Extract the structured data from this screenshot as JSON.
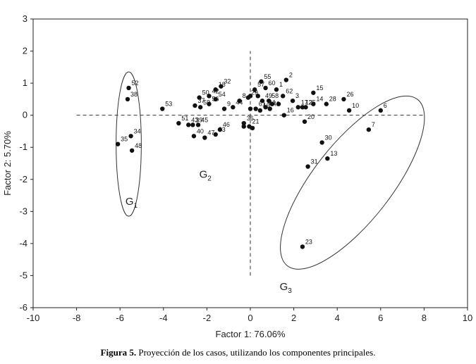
{
  "chart_data": {
    "type": "scatter",
    "xlabel": "Factor 1: 76.06%",
    "ylabel": "Factor 2: 5.70%",
    "xlim": [
      -10,
      10
    ],
    "ylim": [
      -6,
      3
    ],
    "xticks": [
      -10,
      -8,
      -6,
      -4,
      -2,
      0,
      2,
      4,
      6,
      8,
      10
    ],
    "yticks": [
      3,
      2,
      1,
      0,
      -1,
      -2,
      -3,
      -4,
      -5,
      -6
    ],
    "grid": false,
    "caption_prefix": "Figura 5.",
    "caption_text": " Proyección de los casos, utilizando los componentes principales.",
    "groups": [
      {
        "label": "G",
        "sub": "1",
        "center": [
          -5.6,
          -0.9
        ],
        "semi_axes": [
          1.45,
          2.25
        ],
        "angle_deg": 0
      },
      {
        "label": "G",
        "sub": "2",
        "text_anchor": [
          -2.3,
          -1.8
        ]
      },
      {
        "label": "G",
        "sub": "3",
        "center": [
          4.7,
          -2.1
        ],
        "semi_axes": [
          3.4,
          1.85
        ],
        "angle_deg": -52
      }
    ],
    "reference_lines": [
      {
        "axis": "y",
        "value": 0,
        "from": -8,
        "to": 8,
        "style": "dashed"
      },
      {
        "axis": "x",
        "value": 0,
        "from": -5,
        "to": 2,
        "style": "dashed"
      }
    ],
    "points": [
      {
        "label": "52",
        "x": -5.6,
        "y": 0.85
      },
      {
        "label": "38",
        "x": -5.65,
        "y": 0.5
      },
      {
        "label": "34",
        "x": -5.5,
        "y": -0.65
      },
      {
        "label": "35",
        "x": -6.1,
        "y": -0.9
      },
      {
        "label": "48",
        "x": -5.45,
        "y": -1.1
      },
      {
        "label": "53",
        "x": -4.05,
        "y": 0.2
      },
      {
        "label": "51",
        "x": -3.3,
        "y": -0.25
      },
      {
        "label": "43",
        "x": -2.85,
        "y": -0.3
      },
      {
        "label": "39",
        "x": -2.65,
        "y": -0.3
      },
      {
        "label": "45",
        "x": -2.4,
        "y": -0.3
      },
      {
        "label": "40",
        "x": -2.6,
        "y": -0.65
      },
      {
        "label": "47",
        "x": -2.1,
        "y": -0.7
      },
      {
        "label": "46",
        "x": -1.4,
        "y": -0.45
      },
      {
        "label": "33",
        "x": -1.6,
        "y": -0.6
      },
      {
        "label": "50",
        "x": -2.35,
        "y": 0.55
      },
      {
        "label": "37",
        "x": -2.55,
        "y": 0.3
      },
      {
        "label": "42",
        "x": -1.9,
        "y": 0.6
      },
      {
        "label": "54",
        "x": -1.6,
        "y": 0.5
      },
      {
        "label": "59",
        "x": -2.3,
        "y": 0.25
      },
      {
        "label": "56",
        "x": -1.9,
        "y": 0.35
      },
      {
        "label": "18",
        "x": -1.6,
        "y": 0.8
      },
      {
        "label": "32",
        "x": -1.35,
        "y": 0.9
      },
      {
        "label": "9",
        "x": -1.2,
        "y": 0.2
      },
      {
        "label": "44",
        "x": -0.8,
        "y": 0.25
      },
      {
        "label": "8",
        "x": -0.5,
        "y": 0.45
      },
      {
        "label": "29",
        "x": -0.1,
        "y": 0.55
      },
      {
        "label": "4",
        "x": 0.0,
        "y": 0.6
      },
      {
        "label": "57",
        "x": 0.2,
        "y": 0.8
      },
      {
        "label": "55",
        "x": 0.5,
        "y": 1.05
      },
      {
        "label": "60",
        "x": 0.7,
        "y": 0.85
      },
      {
        "label": "2",
        "x": 1.65,
        "y": 1.1
      },
      {
        "label": "1",
        "x": 1.2,
        "y": 0.8
      },
      {
        "label": "62",
        "x": 1.5,
        "y": 0.6
      },
      {
        "label": "3",
        "x": 1.95,
        "y": 0.45
      },
      {
        "label": "15",
        "x": 2.9,
        "y": 0.7
      },
      {
        "label": "61",
        "x": 0.25,
        "y": 0.2
      },
      {
        "label": "49",
        "x": 0.55,
        "y": 0.45
      },
      {
        "label": "58",
        "x": 0.85,
        "y": 0.45
      },
      {
        "label": "24",
        "x": 0.7,
        "y": 0.25
      },
      {
        "label": "41",
        "x": 0.9,
        "y": 0.2
      },
      {
        "label": "19",
        "x": 0.45,
        "y": 0.15
      },
      {
        "label": "16",
        "x": 1.55,
        "y": 0.0
      },
      {
        "label": "17",
        "x": 2.2,
        "y": 0.25
      },
      {
        "label": "12",
        "x": 2.4,
        "y": 0.25
      },
      {
        "label": "25",
        "x": 2.55,
        "y": 0.25
      },
      {
        "label": "14",
        "x": 2.9,
        "y": 0.35
      },
      {
        "label": "28",
        "x": 3.5,
        "y": 0.35
      },
      {
        "label": "26",
        "x": 4.3,
        "y": 0.5
      },
      {
        "label": "10",
        "x": 4.55,
        "y": 0.15
      },
      {
        "label": "6",
        "x": 6.0,
        "y": 0.15
      },
      {
        "label": "7",
        "x": 5.45,
        "y": -0.45
      },
      {
        "label": "20",
        "x": 2.5,
        "y": -0.2
      },
      {
        "label": "30",
        "x": 3.3,
        "y": -0.85
      },
      {
        "label": "13",
        "x": 3.55,
        "y": -1.35
      },
      {
        "label": "31",
        "x": 2.65,
        "y": -1.6
      },
      {
        "label": "23",
        "x": 2.4,
        "y": -4.1
      },
      {
        "label": "36",
        "x": -0.3,
        "y": -0.25
      },
      {
        "label": "21",
        "x": -0.05,
        "y": -0.35
      },
      {
        "label": "",
        "x": -0.3,
        "y": -0.35
      },
      {
        "label": "",
        "x": 0.1,
        "y": -0.4
      },
      {
        "label": "",
        "x": 1.0,
        "y": 0.35
      },
      {
        "label": "",
        "x": 0.35,
        "y": 0.6
      },
      {
        "label": "",
        "x": 1.3,
        "y": 0.35
      },
      {
        "label": "",
        "x": 0.0,
        "y": 0.2
      }
    ]
  }
}
